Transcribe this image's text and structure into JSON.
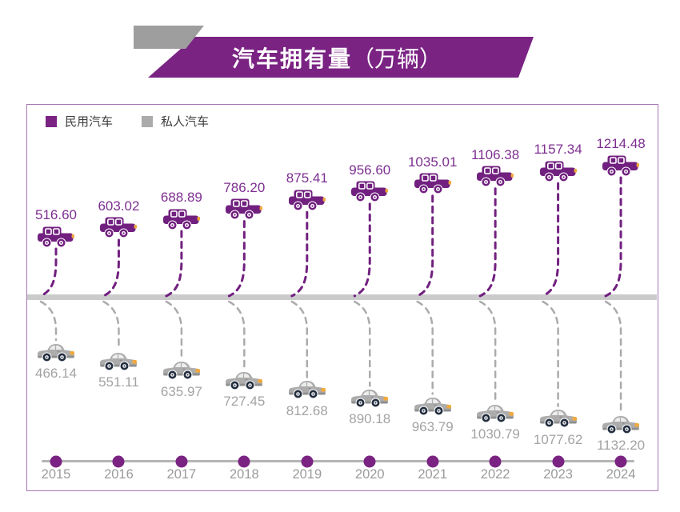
{
  "title": {
    "main": "汽车拥有量",
    "unit": "（万辆）"
  },
  "legend": [
    {
      "label": "民用汽车",
      "color": "#7A2383"
    },
    {
      "label": "私人汽车",
      "color": "#ABABAB"
    }
  ],
  "chart_data": {
    "type": "scatter",
    "title": "汽车拥有量（万辆）",
    "unit": "万辆",
    "categories": [
      "2015",
      "2016",
      "2017",
      "2018",
      "2019",
      "2020",
      "2021",
      "2022",
      "2023",
      "2024"
    ],
    "series": [
      {
        "name": "民用汽车",
        "color": "#7A2383",
        "values": [
          516.6,
          603.02,
          688.89,
          786.2,
          875.41,
          956.6,
          1035.01,
          1106.38,
          1157.34,
          1214.48
        ],
        "labels": [
          "516.60",
          "603.02",
          "688.89",
          "786.20",
          "875.41",
          "956.60",
          "1035.01",
          "1106.38",
          "1157.34",
          "1214.48"
        ]
      },
      {
        "name": "私人汽车",
        "color": "#ABABAB",
        "values": [
          466.14,
          551.11,
          635.97,
          727.45,
          812.68,
          890.18,
          963.79,
          1030.79,
          1077.62,
          1132.2
        ],
        "labels": [
          "466.14",
          "551.11",
          "635.97",
          "727.45",
          "812.68",
          "890.18",
          "963.79",
          "1030.79",
          "1077.62",
          "1132.20"
        ]
      }
    ],
    "legend_position": "top-left",
    "grid": false,
    "layout": "mirrored pictograph: civilian cars above divider band, private cars below, dashed connectors to shared timeline"
  },
  "colors": {
    "banner": "#7A2383",
    "banner_accent_gray": "#9E9E9E",
    "civilian_car": "#71207F",
    "civilian_text": "#7D2F90",
    "private_car": "#ACACAC",
    "private_text": "#A3A3A3",
    "headlight_orange": "#F2A93B",
    "divider_band": "#CBCBCB",
    "axis_line": "#B5B5B5",
    "axis_dot": "#7A2383",
    "panel_border": "#A877B5"
  }
}
